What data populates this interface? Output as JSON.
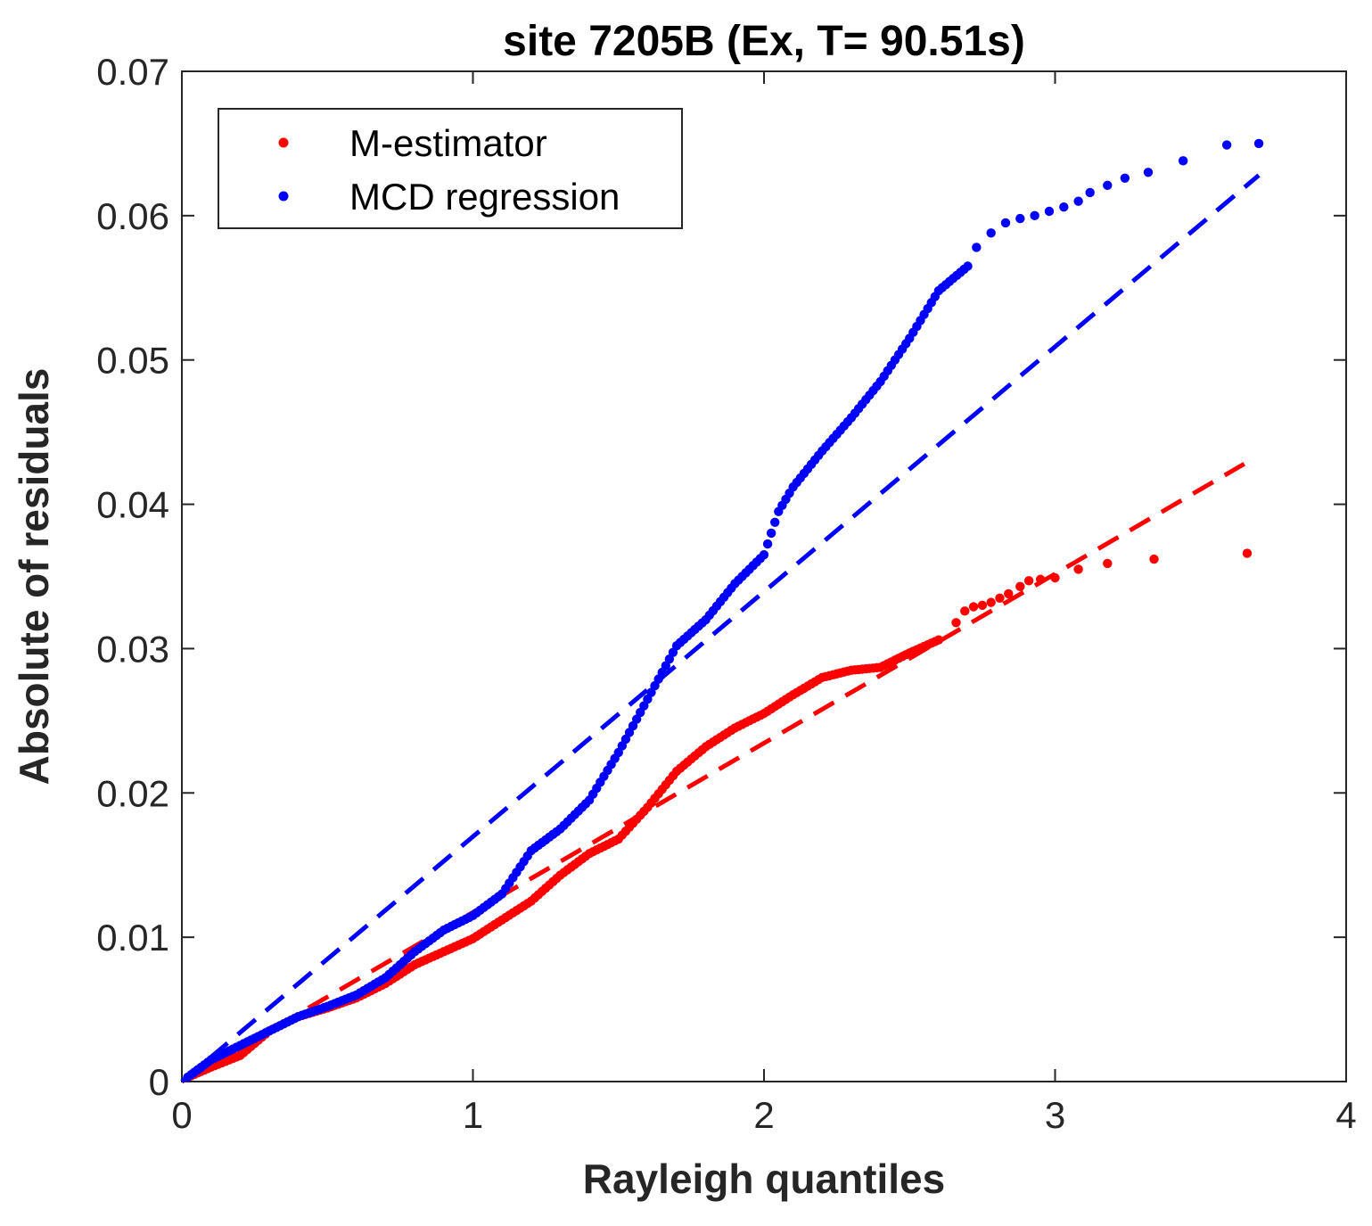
{
  "chart_data": {
    "type": "scatter",
    "title": "site 7205B (Ex, T= 90.51s)",
    "xlabel": "Rayleigh quantiles",
    "ylabel": "Absolute of residuals",
    "xlim": [
      0,
      4
    ],
    "ylim": [
      0,
      0.07
    ],
    "xticks": [
      0,
      1,
      2,
      3,
      4
    ],
    "xtick_labels": [
      "0",
      "1",
      "2",
      "3",
      "4"
    ],
    "yticks": [
      0,
      0.01,
      0.02,
      0.03,
      0.04,
      0.05,
      0.06,
      0.07
    ],
    "ytick_labels": [
      "0",
      "0.01",
      "0.02",
      "0.03",
      "0.04",
      "0.05",
      "0.06",
      "0.07"
    ],
    "grid": false,
    "legend_position": "top-left",
    "series": [
      {
        "name": "M-estimator",
        "color": "#ff0000",
        "fit_line": {
          "x": [
            0,
            3.65
          ],
          "y": [
            0,
            0.0428
          ]
        },
        "curve": [
          [
            0.02,
            0.0003
          ],
          [
            0.1,
            0.001
          ],
          [
            0.2,
            0.0018
          ],
          [
            0.3,
            0.0035
          ],
          [
            0.4,
            0.0045
          ],
          [
            0.5,
            0.0051
          ],
          [
            0.6,
            0.0058
          ],
          [
            0.7,
            0.0068
          ],
          [
            0.8,
            0.0081
          ],
          [
            0.9,
            0.009
          ],
          [
            1.0,
            0.0099
          ],
          [
            1.1,
            0.0112
          ],
          [
            1.2,
            0.0125
          ],
          [
            1.3,
            0.0143
          ],
          [
            1.4,
            0.0158
          ],
          [
            1.5,
            0.0168
          ],
          [
            1.6,
            0.019
          ],
          [
            1.7,
            0.0215
          ],
          [
            1.8,
            0.0232
          ],
          [
            1.9,
            0.0245
          ],
          [
            2.0,
            0.0255
          ],
          [
            2.1,
            0.0268
          ],
          [
            2.2,
            0.028
          ],
          [
            2.3,
            0.0285
          ],
          [
            2.4,
            0.0287
          ],
          [
            2.5,
            0.0297
          ],
          [
            2.6,
            0.0306
          ]
        ],
        "tail": [
          [
            2.66,
            0.0318
          ],
          [
            2.69,
            0.0326
          ],
          [
            2.72,
            0.0329
          ],
          [
            2.75,
            0.033
          ],
          [
            2.78,
            0.0332
          ],
          [
            2.81,
            0.0335
          ],
          [
            2.84,
            0.0338
          ],
          [
            2.88,
            0.0343
          ],
          [
            2.91,
            0.0347
          ],
          [
            2.95,
            0.0348
          ],
          [
            3.0,
            0.0349
          ],
          [
            3.08,
            0.0355
          ],
          [
            3.18,
            0.0359
          ],
          [
            3.34,
            0.0362
          ],
          [
            3.66,
            0.0366
          ]
        ]
      },
      {
        "name": "MCD regression",
        "color": "#0000ff",
        "fit_line": {
          "x": [
            0,
            3.7
          ],
          "y": [
            0,
            0.0628
          ]
        },
        "curve": [
          [
            0.02,
            0.0003
          ],
          [
            0.1,
            0.0015
          ],
          [
            0.2,
            0.0025
          ],
          [
            0.3,
            0.0035
          ],
          [
            0.4,
            0.0045
          ],
          [
            0.5,
            0.0052
          ],
          [
            0.6,
            0.006
          ],
          [
            0.7,
            0.0072
          ],
          [
            0.8,
            0.009
          ],
          [
            0.9,
            0.0105
          ],
          [
            1.0,
            0.0115
          ],
          [
            1.1,
            0.013
          ],
          [
            1.2,
            0.016
          ],
          [
            1.3,
            0.0175
          ],
          [
            1.4,
            0.0195
          ],
          [
            1.5,
            0.0228
          ],
          [
            1.6,
            0.0265
          ],
          [
            1.7,
            0.0302
          ],
          [
            1.8,
            0.032
          ],
          [
            1.9,
            0.0345
          ],
          [
            2.0,
            0.0365
          ],
          [
            2.05,
            0.0395
          ],
          [
            2.1,
            0.0412
          ],
          [
            2.2,
            0.0437
          ],
          [
            2.3,
            0.046
          ],
          [
            2.4,
            0.0485
          ],
          [
            2.5,
            0.0515
          ],
          [
            2.6,
            0.0548
          ],
          [
            2.7,
            0.0565
          ]
        ],
        "tail": [
          [
            2.73,
            0.0578
          ],
          [
            2.78,
            0.0588
          ],
          [
            2.83,
            0.0595
          ],
          [
            2.88,
            0.0598
          ],
          [
            2.93,
            0.06
          ],
          [
            2.98,
            0.0603
          ],
          [
            3.03,
            0.0606
          ],
          [
            3.08,
            0.061
          ],
          [
            3.12,
            0.0616
          ],
          [
            3.18,
            0.0621
          ],
          [
            3.24,
            0.0626
          ],
          [
            3.32,
            0.063
          ],
          [
            3.44,
            0.0638
          ],
          [
            3.59,
            0.0649
          ],
          [
            3.7,
            0.065
          ]
        ]
      }
    ]
  }
}
